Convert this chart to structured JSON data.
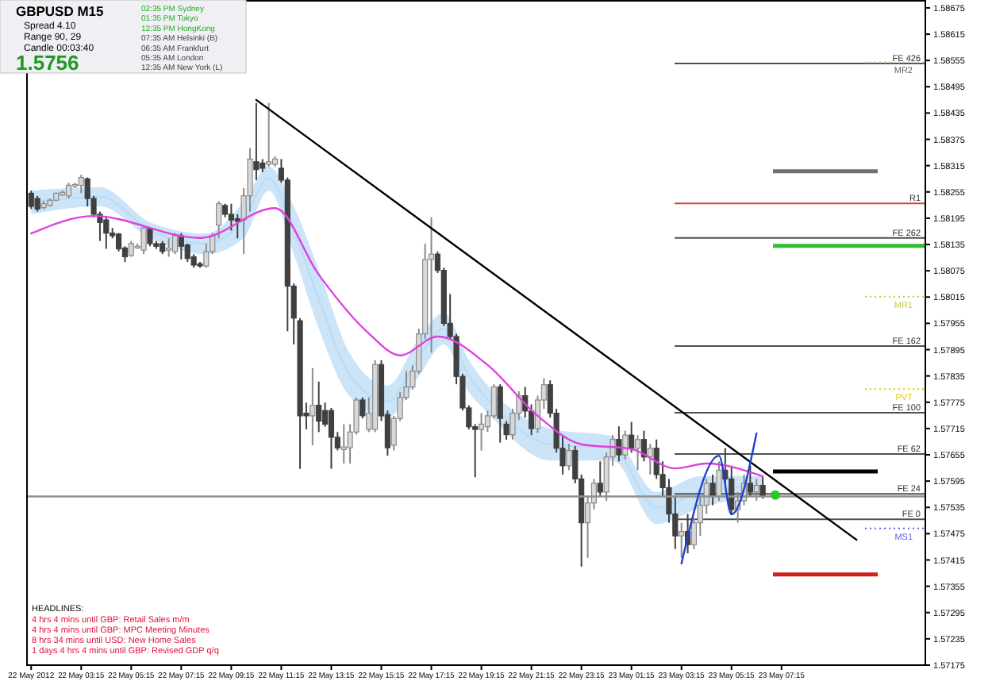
{
  "chart_data": {
    "type": "candlestick",
    "title": "GBPUSD  M15",
    "annotations": [
      "Spread  4.10",
      "Range  90, 29",
      "Candle  00:03:40",
      "1.5756",
      "02:35 PM  Sydney",
      "01:35 PM  Tokyo",
      "12:35 PM  HongKong",
      "07:35 AM  Helsinki (B)",
      "06:35 AM  Frankfurt",
      "05:35 AM  London",
      "12:35 AM  New York (L)",
      "HEADLINES:",
      "4 hrs 4 mins until GBP: Retail Sales m/m",
      "4 hrs 4 mins until GBP: MPC Meeting Minutes",
      "8 hrs 34 mins until USD: New Home Sales",
      "1 days 4 hrs 4 mins until GBP: Revised GDP q/q"
    ],
    "x": [
      "2012-05-22T01:15",
      "2012-05-22T01:30",
      "2012-05-22T01:45",
      "2012-05-22T02:00",
      "2012-05-22T02:15",
      "2012-05-22T02:30",
      "2012-05-22T02:45",
      "2012-05-22T03:00",
      "2012-05-22T03:15",
      "2012-05-22T03:30",
      "2012-05-22T03:45",
      "2012-05-22T04:00",
      "2012-05-22T04:15",
      "2012-05-22T04:30",
      "2012-05-22T04:45",
      "2012-05-22T05:00",
      "2012-05-22T05:15",
      "2012-05-22T05:30",
      "2012-05-22T05:45",
      "2012-05-22T06:00",
      "2012-05-22T06:15",
      "2012-05-22T06:30",
      "2012-05-22T06:45",
      "2012-05-22T07:00",
      "2012-05-22T07:15",
      "2012-05-22T07:30",
      "2012-05-22T07:45",
      "2012-05-22T08:00",
      "2012-05-22T08:15",
      "2012-05-22T08:30",
      "2012-05-22T08:45",
      "2012-05-22T09:00",
      "2012-05-22T09:15",
      "2012-05-22T09:30",
      "2012-05-22T09:45",
      "2012-05-22T10:00",
      "2012-05-22T10:15",
      "2012-05-22T10:30",
      "2012-05-22T10:45",
      "2012-05-22T11:00",
      "2012-05-22T11:15",
      "2012-05-22T11:30",
      "2012-05-22T11:45",
      "2012-05-22T12:00",
      "2012-05-22T12:15",
      "2012-05-22T12:30",
      "2012-05-22T12:45",
      "2012-05-22T13:00",
      "2012-05-22T13:15",
      "2012-05-22T13:30",
      "2012-05-22T13:45",
      "2012-05-22T14:00",
      "2012-05-22T14:15",
      "2012-05-22T14:30",
      "2012-05-22T14:45",
      "2012-05-22T15:00",
      "2012-05-22T15:15",
      "2012-05-22T15:30",
      "2012-05-22T15:45",
      "2012-05-22T16:00",
      "2012-05-22T16:15",
      "2012-05-22T16:30",
      "2012-05-22T16:45",
      "2012-05-22T17:00",
      "2012-05-22T17:15",
      "2012-05-22T17:30",
      "2012-05-22T17:45",
      "2012-05-22T18:00",
      "2012-05-22T18:15",
      "2012-05-22T18:30",
      "2012-05-22T18:45",
      "2012-05-22T19:00",
      "2012-05-22T19:15",
      "2012-05-22T19:30",
      "2012-05-22T19:45",
      "2012-05-22T20:00",
      "2012-05-22T20:15",
      "2012-05-22T20:30",
      "2012-05-22T20:45",
      "2012-05-22T21:00",
      "2012-05-22T21:15",
      "2012-05-22T21:30",
      "2012-05-22T21:45",
      "2012-05-22T22:00",
      "2012-05-22T22:15",
      "2012-05-22T22:30",
      "2012-05-22T22:45",
      "2012-05-22T23:00",
      "2012-05-22T23:15",
      "2012-05-22T23:30",
      "2012-05-22T23:45",
      "2012-05-23T00:00",
      "2012-05-23T00:15",
      "2012-05-23T00:30",
      "2012-05-23T00:45",
      "2012-05-23T01:00",
      "2012-05-23T01:15",
      "2012-05-23T01:30",
      "2012-05-23T01:45",
      "2012-05-23T02:00",
      "2012-05-23T02:15",
      "2012-05-23T02:30",
      "2012-05-23T02:45",
      "2012-05-23T03:00",
      "2012-05-23T03:15",
      "2012-05-23T03:30",
      "2012-05-23T03:45",
      "2012-05-23T04:00",
      "2012-05-23T04:15",
      "2012-05-23T04:30",
      "2012-05-23T04:45",
      "2012-05-23T05:00",
      "2012-05-23T05:15",
      "2012-05-23T05:30",
      "2012-05-23T05:45",
      "2012-05-23T06:00",
      "2012-05-23T06:15",
      "2012-05-23T06:30"
    ],
    "ohlc": [
      [
        1.58252,
        1.58258,
        1.58216,
        1.58222
      ],
      [
        1.5824,
        1.58246,
        1.5821,
        1.58216
      ],
      [
        1.58219,
        1.58234,
        1.58216,
        1.58228
      ],
      [
        1.58224,
        1.5824,
        1.58222,
        1.58236
      ],
      [
        1.58236,
        1.58254,
        1.58234,
        1.58252
      ],
      [
        1.58248,
        1.58258,
        1.58246,
        1.58254
      ],
      [
        1.58246,
        1.58276,
        1.5824,
        1.5827
      ],
      [
        1.58268,
        1.58276,
        1.58264,
        1.58272
      ],
      [
        1.5827,
        1.58294,
        1.58252,
        1.58288
      ],
      [
        1.58285,
        1.58288,
        1.58222,
        1.5824
      ],
      [
        1.5824,
        1.58246,
        1.58197,
        1.58204
      ],
      [
        1.58204,
        1.5821,
        1.58143,
        1.58185
      ],
      [
        1.58191,
        1.58197,
        1.58125,
        1.58161
      ],
      [
        1.58161,
        1.58173,
        1.58149,
        1.58155
      ],
      [
        1.58159,
        1.58161,
        1.58119,
        1.58125
      ],
      [
        1.58127,
        1.58131,
        1.58095,
        1.58107
      ],
      [
        1.5811,
        1.58143,
        1.58107,
        1.58137
      ],
      [
        1.58127,
        1.58137,
        1.58125,
        1.58131
      ],
      [
        1.58122,
        1.58179,
        1.58113,
        1.58173
      ],
      [
        1.58171,
        1.58173,
        1.58131,
        1.58137
      ],
      [
        1.58137,
        1.58143,
        1.58125,
        1.58131
      ],
      [
        1.58137,
        1.58143,
        1.58113,
        1.58119
      ],
      [
        1.58122,
        1.58149,
        1.58107,
        1.58127
      ],
      [
        1.58119,
        1.58161,
        1.58113,
        1.58155
      ],
      [
        1.58155,
        1.58161,
        1.58101,
        1.58131
      ],
      [
        1.58134,
        1.58137,
        1.58095,
        1.58103
      ],
      [
        1.58107,
        1.58113,
        1.58082,
        1.58088
      ],
      [
        1.58091,
        1.58095,
        1.58082,
        1.58086
      ],
      [
        1.58086,
        1.58137,
        1.58082,
        1.58119
      ],
      [
        1.58119,
        1.58161,
        1.58113,
        1.58155
      ],
      [
        1.58179,
        1.58234,
        1.58149,
        1.58228
      ],
      [
        1.58224,
        1.58228,
        1.58197,
        1.58204
      ],
      [
        1.58204,
        1.58228,
        1.58167,
        1.58191
      ],
      [
        1.58194,
        1.58204,
        1.58149,
        1.58188
      ],
      [
        1.58191,
        1.58264,
        1.58113,
        1.58246
      ],
      [
        1.58246,
        1.58355,
        1.5821,
        1.5833
      ],
      [
        1.58324,
        1.58458,
        1.58282,
        1.58306
      ],
      [
        1.58321,
        1.5833,
        1.583,
        1.58309
      ],
      [
        1.58318,
        1.58458,
        1.58312,
        1.58324
      ],
      [
        1.58318,
        1.58336,
        1.58312,
        1.5833
      ],
      [
        1.58309,
        1.5833,
        1.58276,
        1.58282
      ],
      [
        1.58282,
        1.58288,
        1.57937,
        1.5804
      ],
      [
        1.5804,
        1.58046,
        1.57907,
        1.57967
      ],
      [
        1.57961,
        1.57967,
        1.57623,
        1.57744
      ],
      [
        1.5775,
        1.57774,
        1.57713,
        1.57744
      ],
      [
        1.57744,
        1.57853,
        1.57677,
        1.57768
      ],
      [
        1.57768,
        1.57822,
        1.57707,
        1.57732
      ],
      [
        1.57756,
        1.57774,
        1.57719,
        1.57725
      ],
      [
        1.57756,
        1.57762,
        1.57623,
        1.57695
      ],
      [
        1.57695,
        1.57707,
        1.57665,
        1.57671
      ],
      [
        1.57667,
        1.57725,
        1.57635,
        1.57673
      ],
      [
        1.57671,
        1.57725,
        1.57635,
        1.57707
      ],
      [
        1.57707,
        1.57786,
        1.57701,
        1.5778
      ],
      [
        1.5778,
        1.57786,
        1.57738,
        1.57744
      ],
      [
        1.57713,
        1.57786,
        1.57707,
        1.5775
      ],
      [
        1.57713,
        1.57871,
        1.57707,
        1.57861
      ],
      [
        1.57861,
        1.57871,
        1.57732,
        1.57744
      ],
      [
        1.57747,
        1.57756,
        1.57653,
        1.57671
      ],
      [
        1.57677,
        1.57744,
        1.57665,
        1.57738
      ],
      [
        1.57738,
        1.57798,
        1.57732,
        1.57786
      ],
      [
        1.57786,
        1.57846,
        1.5778,
        1.5781
      ],
      [
        1.5781,
        1.57859,
        1.57804,
        1.57846
      ],
      [
        1.57846,
        1.57943,
        1.5784,
        1.57931
      ],
      [
        1.57931,
        1.58137,
        1.57919,
        1.58101
      ],
      [
        1.58101,
        1.58197,
        1.57888,
        1.58113
      ],
      [
        1.58113,
        1.58119,
        1.5807,
        1.58076
      ],
      [
        1.58076,
        1.58082,
        1.57949,
        1.57955
      ],
      [
        1.57955,
        1.58022,
        1.57919,
        1.57925
      ],
      [
        1.57925,
        1.57931,
        1.57816,
        1.57834
      ],
      [
        1.57834,
        1.5784,
        1.57756,
        1.57762
      ],
      [
        1.57762,
        1.57768,
        1.57713,
        1.57719
      ],
      [
        1.57719,
        1.57725,
        1.57604,
        1.57713
      ],
      [
        1.57713,
        1.5775,
        1.57665,
        1.57725
      ],
      [
        1.57719,
        1.57756,
        1.57707,
        1.57744
      ],
      [
        1.57744,
        1.57816,
        1.57738,
        1.5781
      ],
      [
        1.5781,
        1.57816,
        1.57683,
        1.57738
      ],
      [
        1.57725,
        1.57732,
        1.57689,
        1.57701
      ],
      [
        1.57701,
        1.5776,
        1.5769,
        1.5775
      ],
      [
        1.5775,
        1.578,
        1.57735,
        1.5779
      ],
      [
        1.5779,
        1.5781,
        1.5774,
        1.57755
      ],
      [
        1.57755,
        1.5777,
        1.577,
        1.57715
      ],
      [
        1.57715,
        1.5779,
        1.57705,
        1.5778
      ],
      [
        1.5778,
        1.5783,
        1.5776,
        1.57815
      ],
      [
        1.57815,
        1.57825,
        1.5774,
        1.5775
      ],
      [
        1.5775,
        1.5776,
        1.5766,
        1.5767
      ],
      [
        1.5767,
        1.577,
        1.5761,
        1.5763
      ],
      [
        1.5763,
        1.5768,
        1.5762,
        1.57665
      ],
      [
        1.57665,
        1.57675,
        1.5759,
        1.576
      ],
      [
        1.576,
        1.5761,
        1.574,
        1.575
      ],
      [
        1.575,
        1.5756,
        1.5742,
        1.57545
      ],
      [
        1.57545,
        1.576,
        1.5753,
        1.5759
      ],
      [
        1.5759,
        1.5764,
        1.5756,
        1.5757
      ],
      [
        1.5757,
        1.5766,
        1.5755,
        1.5765
      ],
      [
        1.5765,
        1.577,
        1.5763,
        1.5769
      ],
      [
        1.5769,
        1.5772,
        1.5764,
        1.57655
      ],
      [
        1.57655,
        1.5771,
        1.57645,
        1.577
      ],
      [
        1.577,
        1.5773,
        1.5766,
        1.5767
      ],
      [
        1.5767,
        1.577,
        1.5762,
        1.5769
      ],
      [
        1.5769,
        1.5771,
        1.5764,
        1.5765
      ],
      [
        1.5765,
        1.5768,
        1.5761,
        1.5767
      ],
      [
        1.5767,
        1.5769,
        1.576,
        1.5761
      ],
      [
        1.5761,
        1.5764,
        1.5756,
        1.5758
      ],
      [
        1.5758,
        1.576,
        1.575,
        1.5752
      ],
      [
        1.5752,
        1.5756,
        1.5744,
        1.5747
      ],
      [
        1.5747,
        1.575,
        1.5742,
        1.5748
      ],
      [
        1.5748,
        1.5752,
        1.5743,
        1.5745
      ],
      [
        1.5745,
        1.5751,
        1.5744,
        1.575
      ],
      [
        1.575,
        1.5756,
        1.5747,
        1.5754
      ],
      [
        1.5754,
        1.576,
        1.5752,
        1.5759
      ],
      [
        1.5759,
        1.5761,
        1.5754,
        1.5756
      ],
      [
        1.5756,
        1.5764,
        1.5755,
        1.5762
      ],
      [
        1.5762,
        1.5767,
        1.5759,
        1.576
      ],
      [
        1.576,
        1.5763,
        1.5752,
        1.5753
      ],
      [
        1.5753,
        1.5757,
        1.575,
        1.5755
      ],
      [
        1.5755,
        1.5761,
        1.5754,
        1.5759
      ],
      [
        1.5759,
        1.5763,
        1.5756,
        1.5757
      ],
      [
        1.5757,
        1.576,
        1.5755,
        1.57585
      ],
      [
        1.57585,
        1.57605,
        1.57555,
        1.5756
      ]
    ],
    "series": [
      {
        "type": "line",
        "color": "#bcdcf4",
        "x": [
          "2012-05-22T01:15",
          "2012-05-22T04:00",
          "2012-05-22T06:00",
          "2012-05-22T08:15",
          "2012-05-22T09:45",
          "2012-05-22T10:45",
          "2012-05-22T11:45",
          "2012-05-22T12:45",
          "2012-05-22T14:00",
          "2012-05-22T15:30",
          "2012-05-22T16:45",
          "2012-05-22T17:45",
          "2012-05-22T18:45",
          "2012-05-22T19:30",
          "2012-05-22T22:00",
          "2012-05-23T00:30",
          "2012-05-23T02:15",
          "2012-05-23T04:00",
          "2012-05-23T06:30"
        ],
        "values": [
          1.58231,
          1.58244,
          1.58168,
          1.58137,
          1.58192,
          1.58286,
          1.58168,
          1.5801,
          1.57836,
          1.57777,
          1.57878,
          1.57943,
          1.57835,
          1.57782,
          1.57679,
          1.5767,
          1.57534,
          1.5757,
          1.57585
        ],
        "upper": [
          1.58258,
          1.58266,
          1.58186,
          1.5816,
          1.58233,
          1.58313,
          1.58222,
          1.58077,
          1.57885,
          1.57813,
          1.57921,
          1.57979,
          1.57871,
          1.57813,
          1.57715,
          1.57697,
          1.5757,
          1.57606,
          1.57606
        ],
        "lower": [
          1.58204,
          1.58222,
          1.5815,
          1.58113,
          1.5815,
          1.58258,
          1.58113,
          1.57943,
          1.57787,
          1.5774,
          1.57834,
          1.57907,
          1.57798,
          1.57751,
          1.57642,
          1.57642,
          1.57497,
          1.57534,
          1.57563
        ]
      },
      {
        "type": "line",
        "color": "#e040e0",
        "x": [
          "2012-05-22T01:15",
          "2012-05-22T03:45",
          "2012-05-22T08:00",
          "2012-05-22T11:00",
          "2012-05-22T12:45",
          "2012-05-22T14:45",
          "2012-05-22T16:00",
          "2012-05-22T17:30",
          "2012-05-22T19:30",
          "2012-05-22T21:30",
          "2012-05-22T23:15",
          "2012-05-23T01:15",
          "2012-05-23T03:00",
          "2012-05-23T04:15",
          "2012-05-23T06:30"
        ],
        "values": [
          1.5816,
          1.582,
          1.5815,
          1.58218,
          1.58066,
          1.57932,
          1.57882,
          1.57925,
          1.5786,
          1.57744,
          1.57679,
          1.57668,
          1.57624,
          1.57635,
          1.57606
        ]
      },
      {
        "type": "line",
        "color": "#909090",
        "x": [
          "2012-05-22T01:05",
          "2012-05-23T13:00"
        ],
        "values": [
          1.5756,
          1.5756
        ]
      },
      {
        "type": "line",
        "color": "#000000",
        "x": [
          "2012-05-22T10:15",
          "2012-05-23T10:15"
        ],
        "values": [
          1.58465,
          1.57461
        ]
      },
      {
        "type": "line",
        "color": "#1f3fd0",
        "x": [
          "2012-05-23T03:15",
          "2012-05-23T04:45",
          "2012-05-23T05:15",
          "2012-05-23T06:15"
        ],
        "values": [
          1.57407,
          1.57653,
          1.57519,
          1.57704
        ]
      },
      {
        "type": "scatter",
        "color": "#22cc22",
        "x": [
          "2012-05-23T07:00"
        ],
        "values": [
          1.57563
        ]
      }
    ],
    "ref_lines": [
      {
        "axis": "y",
        "value": 1.58548,
        "label": "FE 426",
        "color": "#505050",
        "line_style": "solid"
      },
      {
        "axis": "y",
        "value": 1.58551,
        "label": "MR2",
        "color": "#c8c8a0",
        "line_style": "dotted"
      },
      {
        "axis": "y",
        "value": 1.58302,
        "color": "#707070",
        "line_style": "solid"
      },
      {
        "axis": "y",
        "value": 1.58229,
        "label": "R1",
        "color": "#e04030",
        "line_style": "solid"
      },
      {
        "axis": "y",
        "value": 1.5815,
        "label": "FE 262",
        "color": "#505050",
        "line_style": "solid"
      },
      {
        "axis": "y",
        "value": 1.58132,
        "color": "#30c030",
        "line_style": "solid"
      },
      {
        "axis": "y",
        "value": 1.58016,
        "label": "MR1",
        "color": "#c8c840",
        "line_style": "dotted"
      },
      {
        "axis": "y",
        "value": 1.57903,
        "label": "FE 162",
        "color": "#505050",
        "line_style": "solid"
      },
      {
        "axis": "y",
        "value": 1.57805,
        "label": "PVT",
        "color": "#e0d000",
        "line_style": "dotted"
      },
      {
        "axis": "y",
        "value": 1.57751,
        "label": "FE 100",
        "color": "#505050",
        "line_style": "solid"
      },
      {
        "axis": "y",
        "value": 1.57657,
        "label": "FE 62",
        "color": "#505050",
        "line_style": "solid"
      },
      {
        "axis": "y",
        "value": 1.57617,
        "color": "#000000",
        "line_style": "solid"
      },
      {
        "axis": "y",
        "value": 1.57566,
        "label": "FE 24",
        "color": "#505050",
        "line_style": "solid"
      },
      {
        "axis": "y",
        "value": 1.57508,
        "label": "FE 0",
        "color": "#505050",
        "line_style": "solid"
      },
      {
        "axis": "y",
        "value": 1.57487,
        "label": "MS1",
        "color": "#6060e0",
        "line_style": "dotted"
      },
      {
        "axis": "y",
        "value": 1.57382,
        "color": "#d02020",
        "line_style": "solid"
      }
    ],
    "xlim": [
      "2012-05-22T01:05",
      "2012-05-23T13:00"
    ],
    "xticks": [
      {
        "value": "2012-05-22T01:15",
        "label": "22 May 2012"
      },
      {
        "value": "2012-05-22T03:15",
        "label": "22 May 03:15"
      },
      {
        "value": "2012-05-22T05:15",
        "label": "22 May 05:15"
      },
      {
        "value": "2012-05-22T07:15",
        "label": "22 May 07:15"
      },
      {
        "value": "2012-05-22T09:15",
        "label": "22 May 09:15"
      },
      {
        "value": "2012-05-22T11:15",
        "label": "22 May 11:15"
      },
      {
        "value": "2012-05-22T13:15",
        "label": "22 May 13:15"
      },
      {
        "value": "2012-05-22T15:15",
        "label": "22 May 15:15"
      },
      {
        "value": "2012-05-22T17:15",
        "label": "22 May 17:15"
      },
      {
        "value": "2012-05-22T19:15",
        "label": "22 May 19:15"
      },
      {
        "value": "2012-05-22T21:15",
        "label": "22 May 21:15"
      },
      {
        "value": "2012-05-22T23:15",
        "label": "22 May 23:15"
      },
      {
        "value": "2012-05-23T01:15",
        "label": "23 May 01:15"
      },
      {
        "value": "2012-05-23T03:15",
        "label": "23 May 03:15"
      },
      {
        "value": "2012-05-23T05:15",
        "label": "23 May 05:15"
      },
      {
        "value": "2012-05-23T07:15",
        "label": "23 May 07:15"
      }
    ],
    "ylim": [
      1.57175,
      1.58693
    ],
    "yticks": [
      1.58675,
      1.58615,
      1.58555,
      1.58495,
      1.58435,
      1.58375,
      1.58315,
      1.58255,
      1.58195,
      1.58135,
      1.58075,
      1.58015,
      1.57955,
      1.57895,
      1.57835,
      1.57775,
      1.57715,
      1.57655,
      1.57595,
      1.57535,
      1.57475,
      1.57415,
      1.57355,
      1.57295,
      1.57235,
      1.57175
    ]
  }
}
